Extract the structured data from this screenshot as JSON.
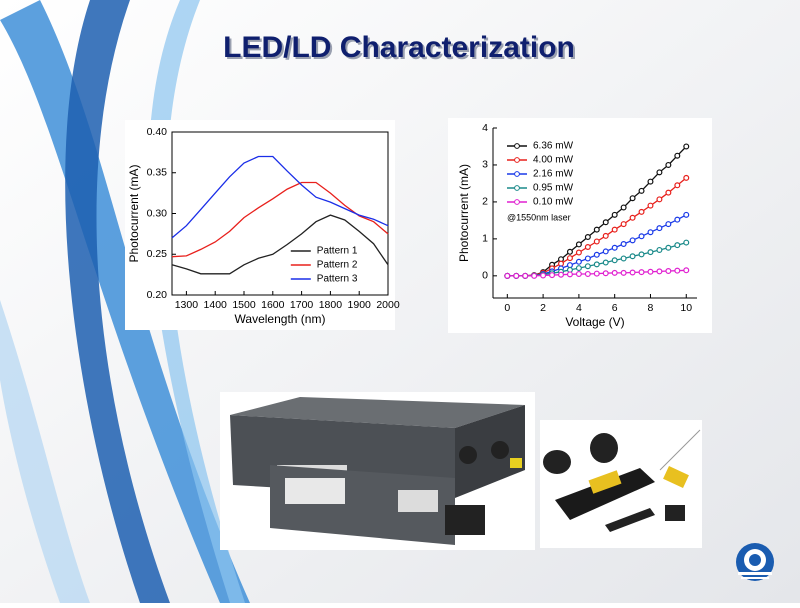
{
  "title": "LED/LD Characterization",
  "chart_data": [
    {
      "type": "line",
      "xlabel": "Wavelength (nm)",
      "ylabel": "Photocurrent (mA)",
      "x": [
        1250,
        1300,
        1350,
        1400,
        1450,
        1500,
        1550,
        1600,
        1650,
        1700,
        1750,
        1800,
        1850,
        1900,
        1950,
        2000
      ],
      "series": [
        {
          "name": "Pattern 1",
          "color": "#222222",
          "values": [
            0.237,
            0.232,
            0.226,
            0.226,
            0.226,
            0.237,
            0.245,
            0.25,
            0.262,
            0.275,
            0.29,
            0.298,
            0.292,
            0.278,
            0.263,
            0.237
          ]
        },
        {
          "name": "Pattern 2",
          "color": "#e8201c",
          "values": [
            0.247,
            0.248,
            0.256,
            0.265,
            0.278,
            0.295,
            0.307,
            0.318,
            0.33,
            0.338,
            0.338,
            0.325,
            0.31,
            0.297,
            0.29,
            0.275
          ]
        },
        {
          "name": "Pattern 3",
          "color": "#1a2ee8",
          "values": [
            0.27,
            0.285,
            0.305,
            0.325,
            0.345,
            0.362,
            0.37,
            0.37,
            0.352,
            0.335,
            0.32,
            0.314,
            0.306,
            0.298,
            0.293,
            0.285
          ]
        }
      ],
      "xlim": [
        1250,
        2000
      ],
      "xticks": [
        1300,
        1400,
        1500,
        1600,
        1700,
        1800,
        1900,
        2000
      ],
      "ylim": [
        0.2,
        0.4
      ],
      "yticks": [
        {
          "value": 0.2,
          "label": "0.20"
        },
        0.25,
        {
          "value": 0.3,
          "label": "0.30"
        },
        0.35,
        {
          "value": 0.4,
          "label": "0.40"
        }
      ],
      "legend": "lower right",
      "frame": true,
      "markers": false
    },
    {
      "type": "line",
      "xlabel": "Voltage (V)",
      "ylabel": "Photocurrent (mA)",
      "annotation": "@1550nm laser",
      "x": [
        0,
        0.5,
        1,
        1.5,
        2,
        2.5,
        3,
        3.5,
        4,
        4.5,
        5,
        5.5,
        6,
        6.5,
        7,
        7.5,
        8,
        8.5,
        9,
        9.5,
        10
      ],
      "series": [
        {
          "name": "6.36 mW",
          "color": "#111111",
          "values": [
            0,
            0,
            0,
            0.02,
            0.1,
            0.3,
            0.45,
            0.65,
            0.85,
            1.05,
            1.25,
            1.45,
            1.65,
            1.85,
            2.1,
            2.3,
            2.55,
            2.8,
            3.0,
            3.25,
            3.5
          ]
        },
        {
          "name": "4.00 mW",
          "color": "#e8201c",
          "values": [
            0,
            0,
            0,
            0.02,
            0.08,
            0.2,
            0.33,
            0.48,
            0.63,
            0.78,
            0.93,
            1.08,
            1.25,
            1.4,
            1.57,
            1.73,
            1.9,
            2.07,
            2.25,
            2.45,
            2.65
          ]
        },
        {
          "name": "2.16 mW",
          "color": "#1a3ae8",
          "values": [
            0,
            0,
            0,
            0.01,
            0.05,
            0.12,
            0.2,
            0.29,
            0.38,
            0.47,
            0.57,
            0.66,
            0.76,
            0.86,
            0.96,
            1.07,
            1.18,
            1.29,
            1.4,
            1.52,
            1.65
          ]
        },
        {
          "name": "0.95 mW",
          "color": "#1a8a8a",
          "values": [
            0,
            0,
            0,
            0.01,
            0.03,
            0.07,
            0.11,
            0.16,
            0.21,
            0.26,
            0.31,
            0.36,
            0.42,
            0.47,
            0.53,
            0.58,
            0.64,
            0.7,
            0.76,
            0.83,
            0.9
          ]
        },
        {
          "name": "0.10 mW",
          "color": "#e020d0",
          "values": [
            0,
            0,
            0,
            0,
            0.01,
            0.02,
            0.03,
            0.04,
            0.05,
            0.05,
            0.06,
            0.07,
            0.08,
            0.08,
            0.09,
            0.1,
            0.11,
            0.12,
            0.13,
            0.14,
            0.15
          ]
        }
      ],
      "xlim": [
        -0.8,
        10.6
      ],
      "xticks": [
        0,
        2,
        4,
        6,
        8,
        10
      ],
      "ylim": [
        -0.6,
        4
      ],
      "yticks": [
        0,
        1,
        2,
        3,
        4
      ],
      "legend": "upper left",
      "frame": false,
      "markers": true
    }
  ]
}
